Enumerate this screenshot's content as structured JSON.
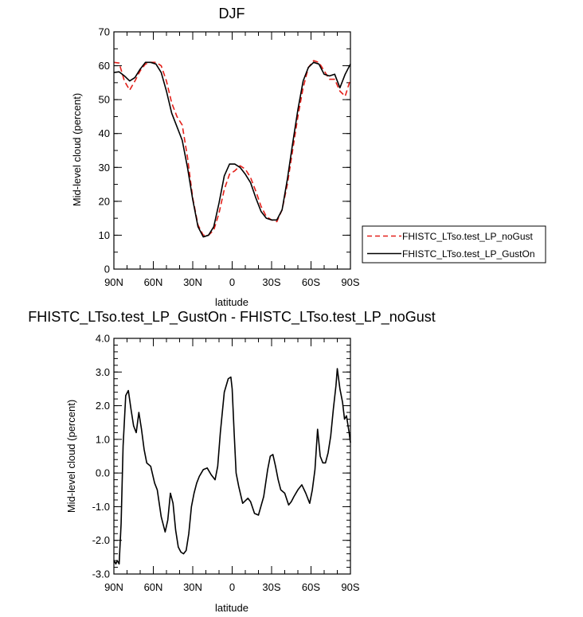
{
  "colors": {
    "noGust": "#e3201a",
    "gustOn": "#000000"
  },
  "chart_data": [
    {
      "type": "line",
      "title": "DJF",
      "xlabel": "latitude",
      "ylabel": "Mid-level cloud (percent)",
      "xlim": [
        -90,
        90
      ],
      "ylim": [
        0,
        70
      ],
      "xticks": [
        {
          "value": -90,
          "label": "90N"
        },
        {
          "value": -60,
          "label": "60N"
        },
        {
          "value": -30,
          "label": "30N"
        },
        {
          "value": 0,
          "label": "0"
        },
        {
          "value": 30,
          "label": "30S"
        },
        {
          "value": 60,
          "label": "60S"
        },
        {
          "value": 90,
          "label": "90S"
        }
      ],
      "yticks": [
        {
          "value": 0,
          "label": "0"
        },
        {
          "value": 10,
          "label": "10"
        },
        {
          "value": 20,
          "label": "20"
        },
        {
          "value": 30,
          "label": "30"
        },
        {
          "value": 40,
          "label": "40"
        },
        {
          "value": 50,
          "label": "50"
        },
        {
          "value": 60,
          "label": "60"
        },
        {
          "value": 70,
          "label": "70"
        }
      ],
      "legend": {
        "placement": "right",
        "entries": [
          "FHISTC_LTso.test_LP_noGust",
          "FHISTC_LTso.test_LP_GustOn"
        ]
      },
      "series": [
        {
          "name": "FHISTC_LTso.test_LP_noGust",
          "style": "dashed",
          "x": [
            -90,
            -86,
            -82,
            -78,
            -74,
            -70,
            -66,
            -62,
            -58,
            -54,
            -50,
            -46,
            -42,
            -38,
            -34,
            -30,
            -26,
            -22,
            -18,
            -14,
            -10,
            -6,
            -2,
            2,
            6,
            10,
            14,
            18,
            22,
            26,
            30,
            34,
            38,
            42,
            46,
            50,
            54,
            58,
            62,
            66,
            70,
            74,
            78,
            82,
            86,
            90
          ],
          "y": [
            61.0,
            60.8,
            55.5,
            52.8,
            55.5,
            58.5,
            60.5,
            61.0,
            61.0,
            60.0,
            55.5,
            49.0,
            45.0,
            42.5,
            33.0,
            21.0,
            13.0,
            10.0,
            10.0,
            11.5,
            16.5,
            23.5,
            28.0,
            29.0,
            30.5,
            29.5,
            27.0,
            23.0,
            18.5,
            15.5,
            14.5,
            14.0,
            17.5,
            25.0,
            35.0,
            45.0,
            53.5,
            59.5,
            61.5,
            61.0,
            58.5,
            56.0,
            56.0,
            52.5,
            51.0,
            56.0
          ]
        },
        {
          "name": "FHISTC_LTso.test_LP_GustOn",
          "style": "solid",
          "x": [
            -90,
            -86,
            -82,
            -78,
            -74,
            -70,
            -66,
            -62,
            -58,
            -54,
            -50,
            -46,
            -42,
            -38,
            -34,
            -30,
            -26,
            -22,
            -18,
            -14,
            -10,
            -6,
            -2,
            2,
            6,
            10,
            14,
            18,
            22,
            26,
            30,
            34,
            38,
            42,
            46,
            50,
            54,
            58,
            62,
            66,
            70,
            74,
            78,
            82,
            86,
            90
          ],
          "y": [
            58.0,
            58.2,
            57.0,
            55.5,
            56.5,
            59.0,
            61.0,
            61.0,
            60.5,
            58.0,
            52.5,
            46.0,
            42.0,
            38.0,
            30.0,
            20.5,
            12.5,
            9.5,
            10.0,
            12.5,
            19.5,
            27.5,
            31.0,
            31.0,
            30.0,
            28.0,
            25.5,
            21.0,
            17.0,
            15.0,
            14.5,
            14.5,
            17.5,
            26.5,
            37.0,
            47.0,
            55.5,
            59.5,
            61.0,
            60.5,
            57.5,
            57.0,
            57.5,
            53.5,
            57.5,
            60.5
          ]
        }
      ]
    },
    {
      "type": "line",
      "title": "FHISTC_LTso.test_LP_GustOn - FHISTC_LTso.test_LP_noGust",
      "xlabel": "latitude",
      "ylabel": "Mid-level cloud (percent)",
      "xlim": [
        -90,
        90
      ],
      "ylim": [
        -3,
        4
      ],
      "xticks": [
        {
          "value": -90,
          "label": "90N"
        },
        {
          "value": -60,
          "label": "60N"
        },
        {
          "value": -30,
          "label": "30N"
        },
        {
          "value": 0,
          "label": "0"
        },
        {
          "value": 30,
          "label": "30S"
        },
        {
          "value": 60,
          "label": "60S"
        },
        {
          "value": 90,
          "label": "90S"
        }
      ],
      "yticks": [
        {
          "value": -3,
          "label": "-3.0"
        },
        {
          "value": -2,
          "label": "-2.0"
        },
        {
          "value": -1,
          "label": "-1.0"
        },
        {
          "value": 0,
          "label": "0.0"
        },
        {
          "value": 1,
          "label": "1.0"
        },
        {
          "value": 2,
          "label": "2.0"
        },
        {
          "value": 3,
          "label": "3.0"
        },
        {
          "value": 4,
          "label": "4.0"
        }
      ],
      "series": [
        {
          "style": "solid",
          "x": [
            -90,
            -88.5,
            -87.5,
            -86,
            -84.5,
            -83,
            -81,
            -79,
            -77,
            -75,
            -73,
            -71,
            -69,
            -67,
            -65,
            -62,
            -59,
            -57,
            -54,
            -51,
            -49,
            -47,
            -45,
            -43,
            -41,
            -39,
            -37,
            -35,
            -33,
            -31,
            -29,
            -27,
            -25,
            -22,
            -19,
            -16,
            -13,
            -11,
            -9,
            -6,
            -3,
            -1,
            0,
            1.5,
            3,
            5,
            8,
            12,
            14,
            17,
            20,
            24,
            27,
            29,
            31,
            33,
            35,
            37,
            40,
            43,
            45,
            47,
            50,
            53,
            56,
            59,
            61,
            63,
            65,
            67,
            69,
            71,
            73,
            75,
            77,
            79,
            80,
            82,
            84,
            85.5,
            87,
            89,
            90
          ],
          "y": [
            -2.6,
            -2.7,
            -2.6,
            -2.7,
            -1.5,
            0.8,
            2.3,
            2.45,
            1.9,
            1.4,
            1.2,
            1.8,
            1.3,
            0.7,
            0.3,
            0.2,
            -0.3,
            -0.5,
            -1.3,
            -1.75,
            -1.4,
            -0.6,
            -0.9,
            -1.7,
            -2.2,
            -2.35,
            -2.4,
            -2.3,
            -1.8,
            -1.0,
            -0.6,
            -0.3,
            -0.1,
            0.1,
            0.15,
            -0.05,
            -0.2,
            0.2,
            1.2,
            2.4,
            2.8,
            2.85,
            2.5,
            1.2,
            0.0,
            -0.4,
            -0.9,
            -0.75,
            -0.85,
            -1.2,
            -1.25,
            -0.7,
            0.1,
            0.5,
            0.55,
            0.2,
            -0.2,
            -0.5,
            -0.6,
            -0.95,
            -0.85,
            -0.7,
            -0.5,
            -0.35,
            -0.6,
            -0.9,
            -0.5,
            0.1,
            1.3,
            0.5,
            0.3,
            0.3,
            0.6,
            1.1,
            1.9,
            2.6,
            3.1,
            2.5,
            2.1,
            1.6,
            1.7,
            1.2,
            0.9
          ]
        }
      ]
    }
  ]
}
